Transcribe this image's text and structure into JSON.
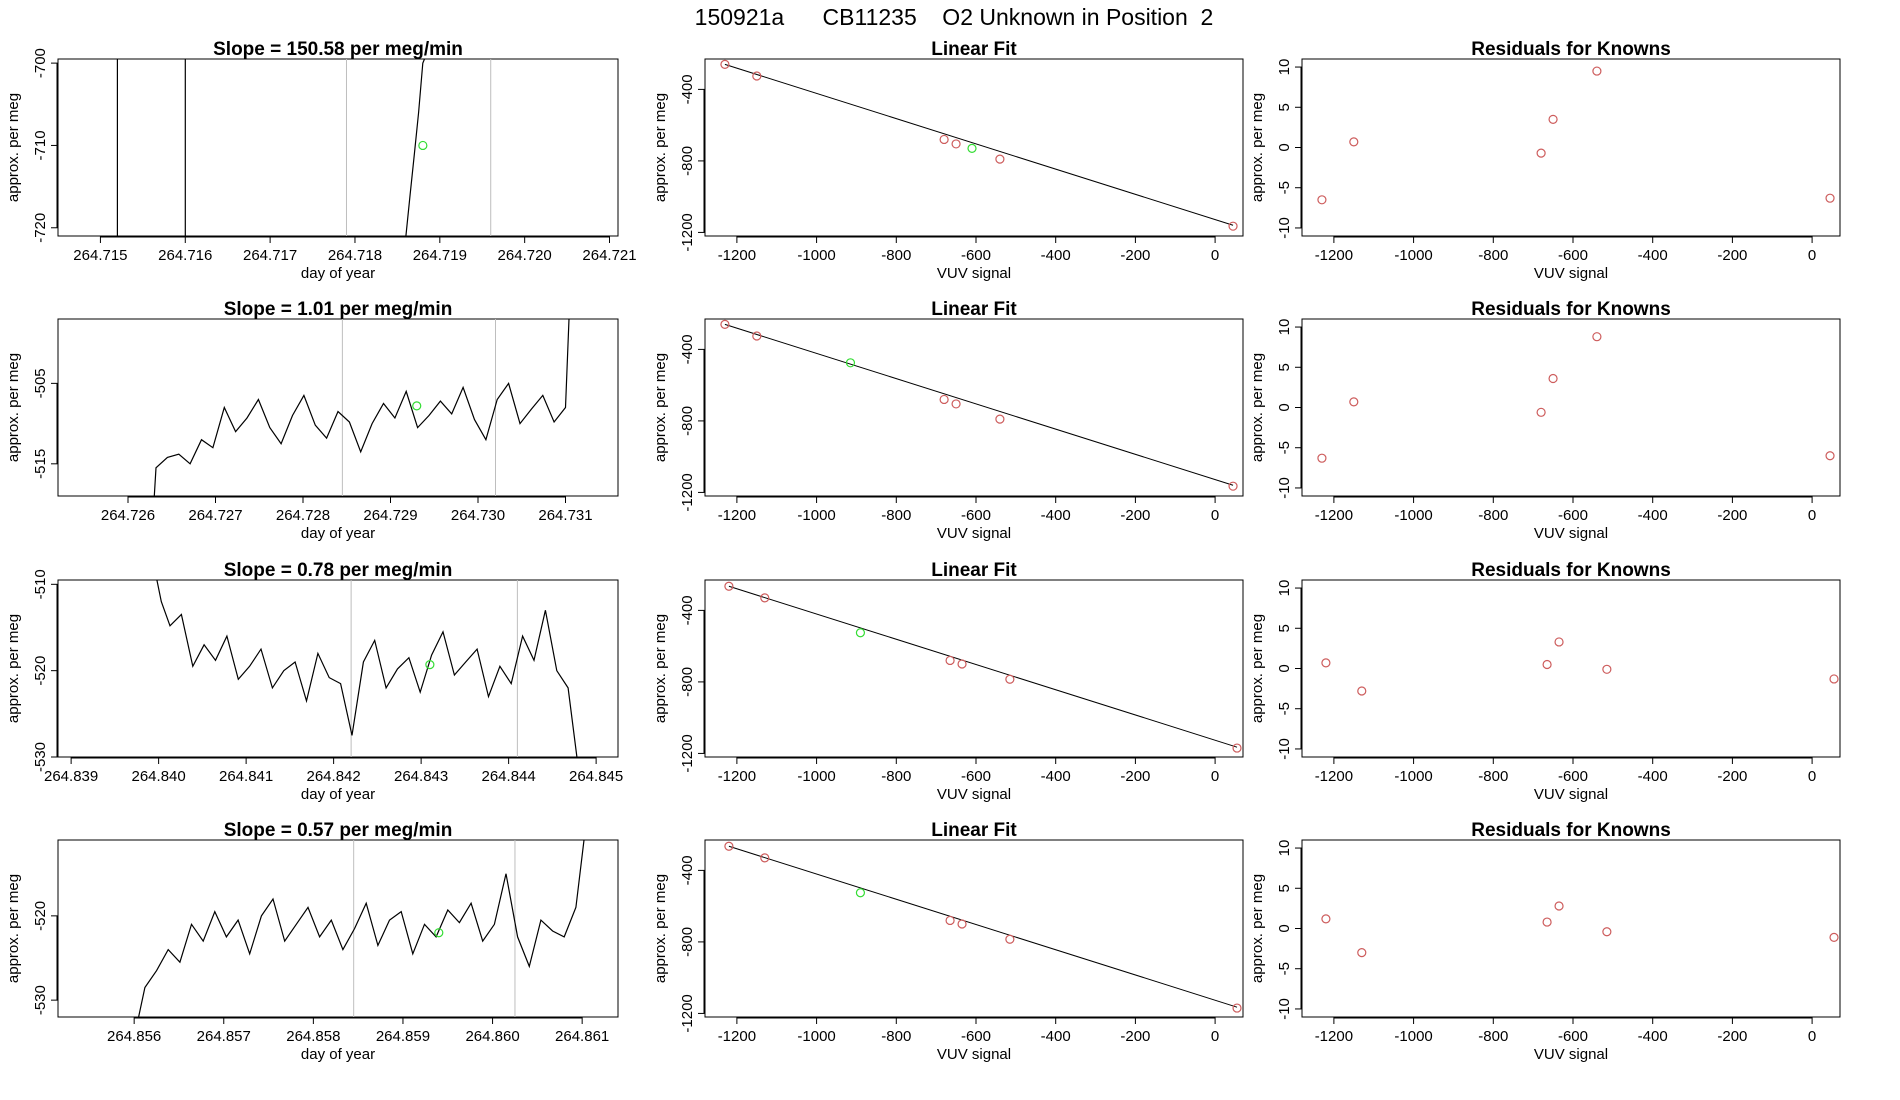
{
  "figure_title": "150921a      CB11235    O2 Unknown in Position  2",
  "colors": {
    "trace": "#000000",
    "grid_vline": "#bebebe",
    "known_point": "#cd5c5c",
    "unknown_point": "#33dd33",
    "fit_line": "#000000"
  },
  "chart_data": [
    {
      "type": "line",
      "row": 0,
      "col": 0,
      "title": "Slope =  150.58  per meg/min",
      "xlabel": "day of year",
      "ylabel": "approx. per meg",
      "xlim": [
        264.7145,
        264.7211
      ],
      "ylim": [
        -721,
        -699.5
      ],
      "xticks": [
        "264.715",
        "264.716",
        "264.717",
        "264.718",
        "264.719",
        "264.720",
        "264.721"
      ],
      "yticks": [
        "-700",
        "-710",
        "-720"
      ],
      "vlines": [
        264.7179,
        264.7196
      ],
      "trace_segments": [
        [
          [
            264.7152,
            -699.5
          ],
          [
            264.7152,
            -721
          ]
        ],
        [
          [
            264.716,
            -699.5
          ],
          [
            264.716,
            -721
          ]
        ],
        [
          [
            264.7186,
            -721
          ],
          [
            264.71865,
            -716
          ],
          [
            264.7187,
            -711
          ],
          [
            264.71875,
            -706
          ],
          [
            264.7188,
            -700
          ],
          [
            264.71882,
            -699.5
          ]
        ]
      ],
      "unknown_point": [
        264.7188,
        -710
      ]
    },
    {
      "type": "scatter",
      "row": 0,
      "col": 1,
      "title": "Linear Fit",
      "xlabel": "VUV signal",
      "ylabel": "approx. per meg",
      "xlim": [
        -1280,
        70
      ],
      "ylim": [
        -1220,
        -230
      ],
      "xticks": [
        "-1200",
        "-1000",
        "-800",
        "-600",
        "-400",
        "-200",
        "0"
      ],
      "yticks": [
        "-400",
        "-800",
        "-1200"
      ],
      "fit_line": [
        [
          -1230,
          -260
        ],
        [
          45,
          -1160
        ]
      ],
      "known_x": [
        -1230,
        -1150,
        -680,
        -650,
        -540,
        45
      ],
      "known_y": [
        -260,
        -325,
        -680,
        -705,
        -790,
        -1165
      ],
      "unknown_point": [
        -610,
        -730
      ]
    },
    {
      "type": "scatter",
      "row": 0,
      "col": 2,
      "title": "Residuals for Knowns",
      "xlabel": "VUV signal",
      "ylabel": "approx. per meg",
      "xlim": [
        -1280,
        70
      ],
      "ylim": [
        -11,
        11
      ],
      "xticks": [
        "-1200",
        "-1000",
        "-800",
        "-600",
        "-400",
        "-200",
        "0"
      ],
      "yticks": [
        "10",
        "5",
        "0",
        "-5",
        "-10"
      ],
      "x": [
        -1230,
        -1150,
        -680,
        -650,
        -540,
        45
      ],
      "y": [
        -6.5,
        0.7,
        -0.7,
        3.5,
        9.5,
        -6.3
      ]
    },
    {
      "type": "line",
      "row": 1,
      "col": 0,
      "title": "Slope =  1.01  per meg/min",
      "xlabel": "day of year",
      "ylabel": "approx. per meg",
      "xlim": [
        264.7252,
        264.7316
      ],
      "ylim": [
        -519,
        -497
      ],
      "xticks": [
        "264.726",
        "264.727",
        "264.728",
        "264.729",
        "264.730",
        "264.731"
      ],
      "yticks": [
        "-505",
        "-515"
      ],
      "vlines": [
        264.72845,
        264.7302
      ],
      "trace_segments": [
        [
          [
            264.7263,
            -519
          ],
          [
            264.72632,
            -515.5
          ],
          [
            264.72645,
            -514.2
          ],
          [
            264.72658,
            -513.8
          ],
          [
            264.72671,
            -515
          ],
          [
            264.72684,
            -512
          ],
          [
            264.72697,
            -513
          ],
          [
            264.7271,
            -508
          ],
          [
            264.72723,
            -511
          ],
          [
            264.72736,
            -509.3
          ],
          [
            264.72749,
            -507
          ],
          [
            264.72762,
            -510.5
          ],
          [
            264.72775,
            -512.5
          ],
          [
            264.72788,
            -509
          ],
          [
            264.72801,
            -506.5
          ],
          [
            264.72814,
            -510.2
          ],
          [
            264.72827,
            -511.8
          ],
          [
            264.7284,
            -508.5
          ],
          [
            264.72853,
            -509.8
          ],
          [
            264.72866,
            -513.5
          ],
          [
            264.72879,
            -510
          ],
          [
            264.72892,
            -507.5
          ],
          [
            264.72905,
            -509.3
          ],
          [
            264.72918,
            -506
          ],
          [
            264.72931,
            -510.5
          ],
          [
            264.72944,
            -509
          ],
          [
            264.72957,
            -507.2
          ],
          [
            264.7297,
            -508.8
          ],
          [
            264.72983,
            -505.5
          ],
          [
            264.72996,
            -509.5
          ],
          [
            264.73009,
            -512
          ],
          [
            264.73022,
            -507
          ],
          [
            264.73035,
            -505
          ],
          [
            264.73048,
            -510
          ],
          [
            264.73061,
            -508.2
          ],
          [
            264.73074,
            -506.5
          ],
          [
            264.73087,
            -509.8
          ],
          [
            264.731,
            -508
          ],
          [
            264.73104,
            -497
          ]
        ]
      ],
      "unknown_point": [
        264.7293,
        -507.8
      ]
    },
    {
      "type": "scatter",
      "row": 1,
      "col": 1,
      "title": "Linear Fit",
      "xlabel": "VUV signal",
      "ylabel": "approx. per meg",
      "xlim": [
        -1280,
        70
      ],
      "ylim": [
        -1220,
        -230
      ],
      "xticks": [
        "-1200",
        "-1000",
        "-800",
        "-600",
        "-400",
        "-200",
        "0"
      ],
      "yticks": [
        "-400",
        "-800",
        "-1200"
      ],
      "fit_line": [
        [
          -1230,
          -260
        ],
        [
          45,
          -1160
        ]
      ],
      "known_x": [
        -1230,
        -1150,
        -680,
        -650,
        -540,
        45
      ],
      "known_y": [
        -260,
        -325,
        -680,
        -705,
        -790,
        -1165
      ],
      "unknown_point": [
        -915,
        -475
      ]
    },
    {
      "type": "scatter",
      "row": 1,
      "col": 2,
      "title": "Residuals for Knowns",
      "xlabel": "VUV signal",
      "ylabel": "approx. per meg",
      "xlim": [
        -1280,
        70
      ],
      "ylim": [
        -11,
        11
      ],
      "xticks": [
        "-1200",
        "-1000",
        "-800",
        "-600",
        "-400",
        "-200",
        "0"
      ],
      "yticks": [
        "10",
        "5",
        "0",
        "-5",
        "-10"
      ],
      "x": [
        -1230,
        -1150,
        -680,
        -650,
        -540,
        45
      ],
      "y": [
        -6.3,
        0.7,
        -0.6,
        3.6,
        8.8,
        -6.0
      ]
    },
    {
      "type": "line",
      "row": 2,
      "col": 0,
      "title": "Slope =  0.78  per meg/min",
      "xlabel": "day of year",
      "ylabel": "approx. per meg",
      "xlim": [
        264.83885,
        264.84525
      ],
      "ylim": [
        -530,
        -509.5
      ],
      "xticks": [
        "264.839",
        "264.840",
        "264.841",
        "264.842",
        "264.843",
        "264.844",
        "264.845"
      ],
      "yticks": [
        "-510",
        "-520",
        "-530"
      ],
      "vlines": [
        264.8422,
        264.8441
      ],
      "trace_segments": [
        [
          [
            264.83998,
            -509.5
          ],
          [
            264.84003,
            -512
          ],
          [
            264.84013,
            -514.8
          ],
          [
            264.84026,
            -513.5
          ],
          [
            264.84039,
            -519.5
          ],
          [
            264.84052,
            -517
          ],
          [
            264.84065,
            -518.8
          ],
          [
            264.84078,
            -516
          ],
          [
            264.84091,
            -521
          ],
          [
            264.84104,
            -519.5
          ],
          [
            264.84117,
            -517.5
          ],
          [
            264.8413,
            -522
          ],
          [
            264.84143,
            -520
          ],
          [
            264.84156,
            -519
          ],
          [
            264.84169,
            -523.5
          ],
          [
            264.84182,
            -518
          ],
          [
            264.84195,
            -520.8
          ],
          [
            264.84208,
            -521.5
          ],
          [
            264.84221,
            -527.5
          ],
          [
            264.84234,
            -519
          ],
          [
            264.84247,
            -516.5
          ],
          [
            264.8426,
            -522
          ],
          [
            264.84273,
            -519.8
          ],
          [
            264.84286,
            -518.5
          ],
          [
            264.84299,
            -522.5
          ],
          [
            264.84312,
            -518.2
          ],
          [
            264.84325,
            -515.5
          ],
          [
            264.84338,
            -520.5
          ],
          [
            264.84351,
            -519
          ],
          [
            264.84364,
            -517.5
          ],
          [
            264.84377,
            -523
          ],
          [
            264.8439,
            -519.5
          ],
          [
            264.84403,
            -521.5
          ],
          [
            264.84416,
            -516
          ],
          [
            264.84429,
            -518.8
          ],
          [
            264.84442,
            -513
          ],
          [
            264.84455,
            -520
          ],
          [
            264.84468,
            -522
          ],
          [
            264.84478,
            -530
          ]
        ]
      ],
      "unknown_point": [
        264.8431,
        -519.3
      ]
    },
    {
      "type": "scatter",
      "row": 2,
      "col": 1,
      "title": "Linear Fit",
      "xlabel": "VUV signal",
      "ylabel": "approx. per meg",
      "xlim": [
        -1280,
        70
      ],
      "ylim": [
        -1220,
        -230
      ],
      "xticks": [
        "-1200",
        "-1000",
        "-800",
        "-600",
        "-400",
        "-200",
        "0"
      ],
      "yticks": [
        "-400",
        "-800",
        "-1200"
      ],
      "fit_line": [
        [
          -1220,
          -265
        ],
        [
          55,
          -1165
        ]
      ],
      "known_x": [
        -1220,
        -1130,
        -665,
        -635,
        -515,
        55
      ],
      "known_y": [
        -265,
        -330,
        -680,
        -700,
        -785,
        -1170
      ],
      "unknown_point": [
        -890,
        -525
      ]
    },
    {
      "type": "scatter",
      "row": 2,
      "col": 2,
      "title": "Residuals for Knowns",
      "xlabel": "VUV signal",
      "ylabel": "approx. per meg",
      "xlim": [
        -1280,
        70
      ],
      "ylim": [
        -11,
        11
      ],
      "xticks": [
        "-1200",
        "-1000",
        "-800",
        "-600",
        "-400",
        "-200",
        "0"
      ],
      "yticks": [
        "10",
        "5",
        "0",
        "-5",
        "-10"
      ],
      "x": [
        -1220,
        -1130,
        -665,
        -635,
        -515,
        55
      ],
      "y": [
        0.7,
        -2.8,
        0.5,
        3.3,
        -0.1,
        -1.3
      ]
    },
    {
      "type": "line",
      "row": 3,
      "col": 0,
      "title": "Slope =  0.57  per meg/min",
      "xlabel": "day of year",
      "ylabel": "approx. per meg",
      "xlim": [
        264.85515,
        264.8614
      ],
      "ylim": [
        -532,
        -511
      ],
      "xticks": [
        "264.856",
        "264.857",
        "264.858",
        "264.859",
        "264.860",
        "264.861"
      ],
      "yticks": [
        "-520",
        "-530"
      ],
      "vlines": [
        264.85845,
        264.86025
      ],
      "trace_segments": [
        [
          [
            264.85605,
            -532
          ],
          [
            264.85612,
            -528.5
          ],
          [
            264.85625,
            -526.5
          ],
          [
            264.85638,
            -524
          ],
          [
            264.85651,
            -525.5
          ],
          [
            264.85664,
            -521
          ],
          [
            264.85677,
            -523
          ],
          [
            264.8569,
            -519.5
          ],
          [
            264.85703,
            -522.5
          ],
          [
            264.85716,
            -520.5
          ],
          [
            264.85729,
            -524.5
          ],
          [
            264.85742,
            -520
          ],
          [
            264.85755,
            -518
          ],
          [
            264.85768,
            -523
          ],
          [
            264.85781,
            -521
          ],
          [
            264.85794,
            -519
          ],
          [
            264.85807,
            -522.5
          ],
          [
            264.8582,
            -520.5
          ],
          [
            264.85833,
            -524
          ],
          [
            264.85846,
            -521.5
          ],
          [
            264.85859,
            -518.5
          ],
          [
            264.85872,
            -523.5
          ],
          [
            264.85885,
            -520.5
          ],
          [
            264.85898,
            -519.5
          ],
          [
            264.85911,
            -524.5
          ],
          [
            264.85924,
            -521
          ],
          [
            264.85937,
            -522.5
          ],
          [
            264.8595,
            -519.3
          ],
          [
            264.85963,
            -520.8
          ],
          [
            264.85976,
            -518.5
          ],
          [
            264.85989,
            -523
          ],
          [
            264.86002,
            -521
          ],
          [
            264.86015,
            -515
          ],
          [
            264.86028,
            -522.5
          ],
          [
            264.86041,
            -526
          ],
          [
            264.86054,
            -520.5
          ],
          [
            264.86067,
            -521.8
          ],
          [
            264.8608,
            -522.5
          ],
          [
            264.86093,
            -519
          ],
          [
            264.86102,
            -511
          ]
        ]
      ],
      "unknown_point": [
        264.8594,
        -522
      ]
    },
    {
      "type": "scatter",
      "row": 3,
      "col": 1,
      "title": "Linear Fit",
      "xlabel": "VUV signal",
      "ylabel": "approx. per meg",
      "xlim": [
        -1280,
        70
      ],
      "ylim": [
        -1220,
        -230
      ],
      "xticks": [
        "-1200",
        "-1000",
        "-800",
        "-600",
        "-400",
        "-200",
        "0"
      ],
      "yticks": [
        "-400",
        "-800",
        "-1200"
      ],
      "fit_line": [
        [
          -1220,
          -265
        ],
        [
          55,
          -1165
        ]
      ],
      "known_x": [
        -1220,
        -1130,
        -665,
        -635,
        -515,
        55
      ],
      "known_y": [
        -265,
        -330,
        -680,
        -700,
        -785,
        -1170
      ],
      "unknown_point": [
        -890,
        -525
      ]
    },
    {
      "type": "scatter",
      "row": 3,
      "col": 2,
      "title": "Residuals for Knowns",
      "xlabel": "VUV signal",
      "ylabel": "approx. per meg",
      "xlim": [
        -1280,
        70
      ],
      "ylim": [
        -11,
        11
      ],
      "xticks": [
        "-1200",
        "-1000",
        "-800",
        "-600",
        "-400",
        "-200",
        "0"
      ],
      "yticks": [
        "10",
        "5",
        "0",
        "-5",
        "-10"
      ],
      "x": [
        -1220,
        -1130,
        -665,
        -635,
        -515,
        55
      ],
      "y": [
        1.2,
        -3.0,
        0.8,
        2.8,
        -0.4,
        -1.1
      ]
    }
  ]
}
